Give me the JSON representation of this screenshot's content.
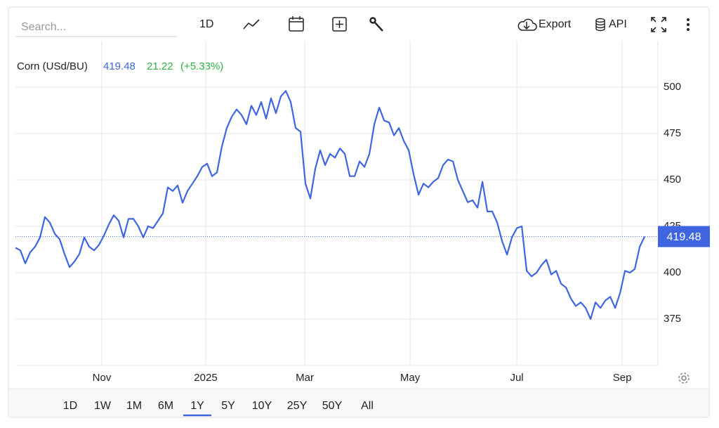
{
  "ui": {
    "search_placeholder": "Search...",
    "interval": "1D",
    "export": "Export",
    "api": "API",
    "ranges": [
      "1D",
      "1W",
      "1M",
      "6M",
      "1Y",
      "5Y",
      "10Y",
      "25Y",
      "50Y",
      "All"
    ],
    "selected_range": 4
  },
  "chart_data": {
    "type": "line",
    "change": 21.22,
    "change_percent": "(+5.33%)",
    "change_color": "#2fb344",
    "series": [
      {
        "name": "Corn (USd/BU)",
        "color": "#3f66e0",
        "values": [
          413.5,
          412,
          405,
          411,
          414,
          419,
          430,
          427,
          421,
          418,
          410,
          403,
          406,
          410,
          419,
          414,
          412,
          415,
          420,
          426,
          431,
          428,
          419,
          429,
          429,
          425,
          419,
          425,
          424,
          428,
          432,
          446,
          444,
          447,
          437.7,
          444,
          448,
          452,
          457,
          458.8,
          452,
          454,
          468,
          478,
          484,
          488,
          485,
          480,
          490,
          485,
          492,
          483,
          494,
          486,
          495,
          498,
          492,
          478,
          476,
          448,
          440,
          456,
          466,
          458,
          464,
          462,
          467,
          464,
          452,
          452,
          460,
          457,
          464,
          480,
          489,
          482,
          481,
          474,
          478,
          471,
          466,
          453,
          442,
          448,
          446,
          449,
          451,
          458,
          461,
          460,
          450,
          444,
          438,
          439,
          435,
          449,
          433,
          433,
          427,
          417,
          409.7,
          419,
          424,
          425,
          401,
          398,
          400,
          404,
          407,
          399,
          401,
          394,
          392,
          386,
          382,
          384,
          381,
          375,
          384,
          381,
          385,
          387,
          381,
          389,
          401,
          400,
          402,
          414,
          419.48
        ]
      }
    ],
    "xlim": [
      0,
      130.7
    ],
    "xticks": [
      {
        "value": 17.57,
        "label": "Nov"
      },
      {
        "value": 38.71,
        "label": "2025"
      },
      {
        "value": 58.86,
        "label": "Mar"
      },
      {
        "value": 80.29,
        "label": "May"
      },
      {
        "value": 102,
        "label": "Jul"
      },
      {
        "value": 123.43,
        "label": "Sep"
      }
    ],
    "ylim": [
      350,
      525
    ],
    "yticks": [
      375,
      400,
      425,
      450,
      475,
      500
    ],
    "grid": true
  }
}
